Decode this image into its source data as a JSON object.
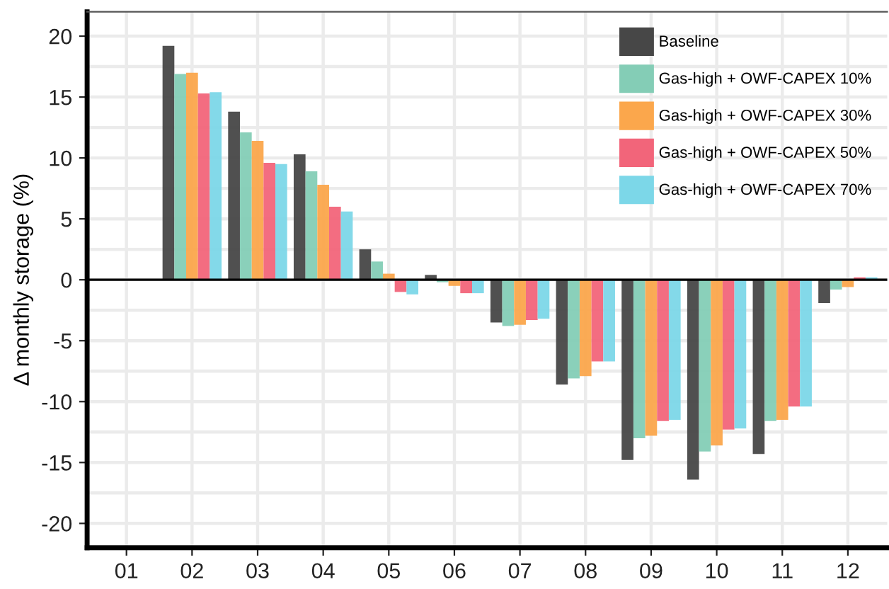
{
  "chart_data": {
    "type": "bar",
    "ylabel": "Δ monthly storage (%)",
    "categories": [
      "01",
      "02",
      "03",
      "04",
      "05",
      "06",
      "07",
      "08",
      "09",
      "10",
      "11",
      "12"
    ],
    "series": [
      {
        "name": "Baseline",
        "color": "#474747",
        "values": [
          0,
          19.2,
          13.8,
          10.3,
          2.5,
          0.4,
          -3.5,
          -8.6,
          -14.8,
          -16.4,
          -14.3,
          -1.9
        ]
      },
      {
        "name": "Gas-high + OWF-CAPEX 10%",
        "color": "#84cdb6",
        "values": [
          0,
          16.9,
          12.1,
          8.9,
          1.5,
          -0.2,
          -3.8,
          -8.1,
          -13.0,
          -14.1,
          -11.6,
          -0.8
        ]
      },
      {
        "name": "Gas-high + OWF-CAPEX 30%",
        "color": "#fba74c",
        "values": [
          0,
          17.0,
          11.4,
          7.8,
          0.5,
          -0.5,
          -3.7,
          -7.9,
          -12.8,
          -13.6,
          -11.5,
          -0.6
        ]
      },
      {
        "name": "Gas-high + OWF-CAPEX 50%",
        "color": "#f2657a",
        "values": [
          0,
          15.3,
          9.6,
          6.0,
          -1.0,
          -1.1,
          -3.3,
          -6.7,
          -11.6,
          -12.3,
          -10.4,
          0.2
        ]
      },
      {
        "name": "Gas-high + OWF-CAPEX 70%",
        "color": "#7cd7e8",
        "values": [
          0,
          15.4,
          9.5,
          5.6,
          -1.2,
          -1.1,
          -3.2,
          -6.7,
          -11.5,
          -12.2,
          -10.4,
          0.2
        ]
      }
    ],
    "ylim": [
      -22,
      22
    ],
    "yticks": [
      -20,
      {
        "value": -17.5,
        "label": null
      },
      -15,
      {
        "value": -12.5,
        "label": null
      },
      -10,
      {
        "value": -7.5,
        "label": null
      },
      -5,
      {
        "value": -2.5,
        "label": null
      },
      0,
      {
        "value": 2.5,
        "label": null
      },
      5,
      {
        "value": 7.5,
        "label": null
      },
      10,
      {
        "value": 12.5,
        "label": null
      },
      15,
      {
        "value": 17.5,
        "label": null
      },
      20
    ],
    "ref_lines": [
      {
        "axis": "y",
        "value": 0,
        "color": "#000000"
      }
    ],
    "grid": true,
    "legend": "top right"
  }
}
